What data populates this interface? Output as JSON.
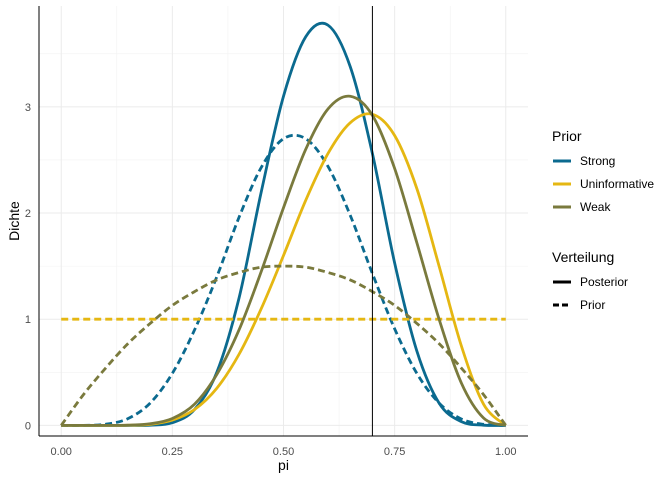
{
  "chart_data": {
    "type": "line",
    "xlabel": "pi",
    "ylabel": "Dichte",
    "xlim": [
      -0.05,
      1.05
    ],
    "ylim": [
      -0.1,
      3.95
    ],
    "x_ticks": [
      0,
      0.25,
      0.5,
      0.75,
      1
    ],
    "x_tick_labels": [
      "0.00",
      "0.25",
      "0.50",
      "0.75",
      "1.00"
    ],
    "y_ticks": [
      0,
      1,
      2,
      3
    ],
    "y_tick_labels": [
      "0",
      "1",
      "2",
      "3"
    ],
    "grid": true,
    "vline_x": 0.7,
    "legend_position": "right",
    "legend": {
      "color_title": "Prior",
      "linetype_title": "Verteilung",
      "color_entries": [
        {
          "label": "Strong",
          "color": "#0b6a8f"
        },
        {
          "label": "Uninformative",
          "color": "#e5b712"
        },
        {
          "label": "Weak",
          "color": "#7a7a3d"
        }
      ],
      "linetype_entries": [
        {
          "label": "Posterior",
          "dash": "solid"
        },
        {
          "label": "Prior",
          "dash": "dashed"
        }
      ]
    },
    "series": [
      {
        "prior": "Strong",
        "distribution": "Prior",
        "color": "#0b6a8f",
        "dash": "dashed",
        "x": [
          0,
          0.05,
          0.1,
          0.15,
          0.2,
          0.25,
          0.3,
          0.35,
          0.4,
          0.45,
          0.5,
          0.55,
          0.6,
          0.65,
          0.7,
          0.75,
          0.8,
          0.85,
          0.9,
          0.95,
          1
        ],
        "y": [
          0,
          0.0004,
          0.011,
          0.064,
          0.21,
          0.49,
          0.9,
          1.4,
          1.96,
          2.43,
          2.7,
          2.7,
          2.44,
          1.98,
          1.43,
          0.91,
          0.49,
          0.21,
          0.06,
          0.01,
          0
        ]
      },
      {
        "prior": "Strong",
        "distribution": "Posterior",
        "color": "#0b6a8f",
        "dash": "solid",
        "x": [
          0,
          0.05,
          0.1,
          0.15,
          0.2,
          0.25,
          0.3,
          0.35,
          0.4,
          0.45,
          0.5,
          0.55,
          0.6,
          0.65,
          0.7,
          0.75,
          0.8,
          0.85,
          0.9,
          0.95,
          1
        ],
        "y": [
          0,
          0,
          0,
          0,
          0.002,
          0.025,
          0.15,
          0.5,
          1.2,
          2.2,
          3.1,
          3.66,
          3.77,
          3.38,
          2.56,
          1.53,
          0.7,
          0.21,
          0.035,
          0.002,
          0
        ]
      },
      {
        "prior": "Uninformative",
        "distribution": "Prior",
        "color": "#e5b712",
        "dash": "dashed",
        "x": [
          0,
          1
        ],
        "y": [
          1,
          1
        ]
      },
      {
        "prior": "Uninformative",
        "distribution": "Posterior",
        "color": "#e5b712",
        "dash": "solid",
        "x": [
          0,
          0.05,
          0.1,
          0.15,
          0.2,
          0.25,
          0.3,
          0.35,
          0.4,
          0.45,
          0.5,
          0.55,
          0.6,
          0.65,
          0.7,
          0.75,
          0.8,
          0.85,
          0.9,
          0.95,
          1
        ],
        "y": [
          0,
          0,
          0,
          0.001,
          0.01,
          0.05,
          0.15,
          0.35,
          0.67,
          1.1,
          1.6,
          2.12,
          2.56,
          2.85,
          2.93,
          2.73,
          2.23,
          1.5,
          0.75,
          0.2,
          0
        ]
      },
      {
        "prior": "Weak",
        "distribution": "Prior",
        "color": "#7a7a3d",
        "dash": "dashed",
        "x": [
          0,
          0.05,
          0.1,
          0.15,
          0.2,
          0.25,
          0.3,
          0.35,
          0.4,
          0.45,
          0.5,
          0.55,
          0.6,
          0.65,
          0.7,
          0.75,
          0.8,
          0.85,
          0.9,
          0.95,
          1
        ],
        "y": [
          0,
          0.29,
          0.54,
          0.77,
          0.96,
          1.13,
          1.26,
          1.37,
          1.44,
          1.49,
          1.5,
          1.49,
          1.44,
          1.37,
          1.26,
          1.13,
          0.96,
          0.77,
          0.54,
          0.29,
          0
        ]
      },
      {
        "prior": "Weak",
        "distribution": "Posterior",
        "color": "#7a7a3d",
        "dash": "solid",
        "x": [
          0,
          0.05,
          0.1,
          0.15,
          0.2,
          0.25,
          0.3,
          0.35,
          0.4,
          0.45,
          0.5,
          0.55,
          0.6,
          0.65,
          0.7,
          0.75,
          0.8,
          0.85,
          0.9,
          0.95,
          1
        ],
        "y": [
          0,
          0,
          0,
          0.002,
          0.015,
          0.065,
          0.2,
          0.48,
          0.9,
          1.45,
          2.05,
          2.6,
          2.98,
          3.1,
          2.92,
          2.42,
          1.72,
          1.0,
          0.4,
          0.07,
          0
        ]
      }
    ]
  }
}
